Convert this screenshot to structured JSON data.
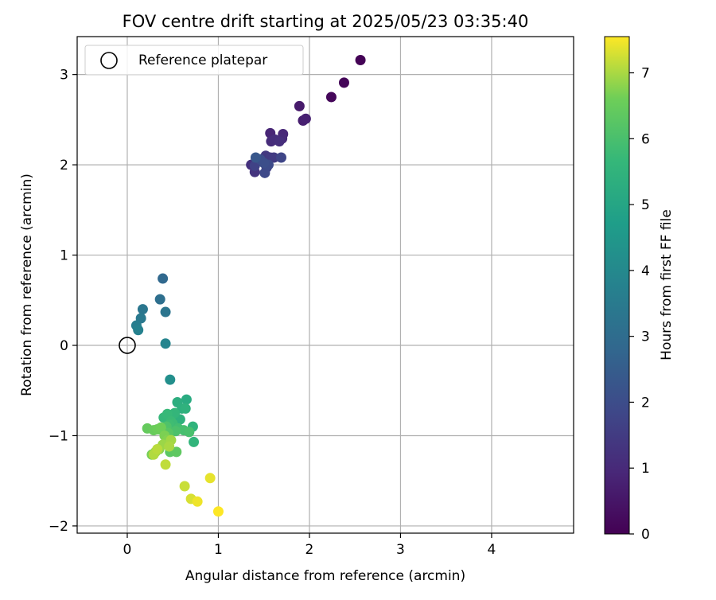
{
  "chart_data": {
    "type": "scatter",
    "title": "FOV centre drift starting at 2025/05/23 03:35:40",
    "xlabel": "Angular distance from reference (arcmin)",
    "ylabel": "Rotation from reference (arcmin)",
    "xlim": [
      -0.55,
      4.9
    ],
    "ylim": [
      -2.08,
      3.42
    ],
    "xticks": [
      "0",
      "1",
      "2",
      "3",
      "4"
    ],
    "yticks": [
      "−2",
      "−1",
      "0",
      "1",
      "2",
      "3"
    ],
    "grid": true,
    "legend": {
      "position": "top-left",
      "entries": [
        "Reference platepar"
      ]
    },
    "reference_point": {
      "x": 0,
      "y": 0
    },
    "colorbar": {
      "label": "Hours from first FF file",
      "colormap": "viridis",
      "range": [
        0,
        7.55
      ],
      "ticks": [
        "0",
        "1",
        "2",
        "3",
        "4",
        "5",
        "6",
        "7"
      ]
    },
    "series": [
      {
        "x": [
          2.56,
          2.38,
          2.24,
          1.89,
          1.93,
          1.96,
          1.57,
          1.71,
          1.7,
          1.58,
          1.62,
          1.67,
          1.36,
          1.4,
          1.47,
          1.52,
          1.57,
          1.61,
          1.49,
          1.53,
          1.4,
          1.69,
          1.51,
          1.55,
          1.46,
          1.5,
          1.41,
          0.39,
          0.36,
          0.42,
          0.17,
          0.15,
          0.1,
          0.12,
          0.42,
          0.47,
          0.65,
          0.55,
          0.6,
          0.58,
          0.64,
          0.72,
          0.73,
          0.52,
          0.4,
          0.44,
          0.48,
          0.5,
          0.46,
          0.56,
          0.62,
          0.68,
          0.53,
          0.43,
          0.38,
          0.35,
          0.45,
          0.47,
          0.54,
          0.22,
          0.29,
          0.33,
          0.37,
          0.27,
          0.41,
          0.44,
          0.35,
          0.31,
          0.39,
          0.48,
          0.46,
          0.29,
          0.33,
          0.42,
          0.63,
          0.91,
          0.7,
          0.77,
          1.0
        ],
        "y": [
          3.16,
          2.91,
          2.75,
          2.65,
          2.49,
          2.51,
          2.35,
          2.34,
          2.29,
          2.26,
          2.28,
          2.26,
          2.0,
          1.92,
          2.05,
          2.1,
          2.08,
          2.08,
          2.03,
          1.97,
          1.99,
          2.08,
          1.91,
          2.0,
          2.06,
          2.02,
          2.08,
          0.74,
          0.51,
          0.37,
          0.4,
          0.3,
          0.22,
          0.17,
          0.02,
          -0.38,
          -0.6,
          -0.63,
          -0.7,
          -0.82,
          -0.7,
          -0.9,
          -1.07,
          -0.75,
          -0.8,
          -0.76,
          -0.84,
          -0.87,
          -0.88,
          -0.92,
          -0.94,
          -0.96,
          -0.95,
          -0.9,
          -0.92,
          -0.93,
          -0.97,
          -1.18,
          -1.18,
          -0.92,
          -0.94,
          -0.93,
          -0.91,
          -1.21,
          -1.0,
          -1.05,
          -1.15,
          -1.18,
          -1.1,
          -1.05,
          -1.12,
          -1.21,
          -1.15,
          -1.32,
          -1.56,
          -1.47,
          -1.7,
          -1.73,
          -1.84
        ],
        "c": [
          0.05,
          0.1,
          0.15,
          0.6,
          0.7,
          0.75,
          0.9,
          0.95,
          1.0,
          1.05,
          1.1,
          1.15,
          1.2,
          1.3,
          1.35,
          1.4,
          1.45,
          1.5,
          1.55,
          1.6,
          1.7,
          1.8,
          1.9,
          1.95,
          2.0,
          2.05,
          2.3,
          2.85,
          3.1,
          3.3,
          3.35,
          3.45,
          3.6,
          3.75,
          3.85,
          4.2,
          5.2,
          5.3,
          5.35,
          5.4,
          5.45,
          5.5,
          5.55,
          5.6,
          5.65,
          5.7,
          5.75,
          5.8,
          5.85,
          5.9,
          5.95,
          6.0,
          6.05,
          6.1,
          6.15,
          6.2,
          6.25,
          6.3,
          6.35,
          6.45,
          6.5,
          6.55,
          6.6,
          6.65,
          6.7,
          6.75,
          6.8,
          6.85,
          6.9,
          6.95,
          7.0,
          7.05,
          7.1,
          7.15,
          7.2,
          7.4,
          7.3,
          7.45,
          7.55
        ]
      }
    ]
  }
}
